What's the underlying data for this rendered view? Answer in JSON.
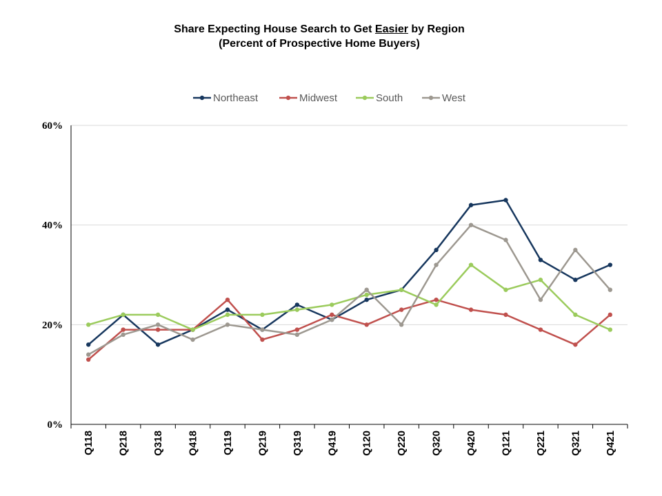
{
  "title": {
    "prefix": "Share Expecting House Search to Get ",
    "emphasis": "Easier",
    "suffix": " by Region",
    "subtitle": "(Percent of Prospective Home Buyers)"
  },
  "chart_data": {
    "type": "line",
    "categories": [
      "Q118",
      "Q218",
      "Q318",
      "Q418",
      "Q119",
      "Q219",
      "Q319",
      "Q419",
      "Q120",
      "Q220",
      "Q320",
      "Q420",
      "Q121",
      "Q221",
      "Q321",
      "Q421"
    ],
    "ylim": [
      0,
      60
    ],
    "yticks": [
      "0%",
      "20%",
      "40%",
      "60%"
    ],
    "grid": true,
    "legend_position": "top-center",
    "series": [
      {
        "name": "Northeast",
        "color": "#17375e",
        "values": [
          16,
          22,
          16,
          19,
          23,
          19,
          24,
          21,
          25,
          27,
          35,
          44,
          45,
          33,
          29,
          32
        ]
      },
      {
        "name": "Midwest",
        "color": "#c0504d",
        "values": [
          13,
          19,
          19,
          19,
          25,
          17,
          19,
          22,
          20,
          23,
          25,
          23,
          22,
          19,
          16,
          22
        ]
      },
      {
        "name": "South",
        "color": "#9bcb5c",
        "values": [
          20,
          22,
          22,
          19,
          22,
          22,
          23,
          24,
          26,
          27,
          24,
          32,
          27,
          29,
          22,
          19
        ]
      },
      {
        "name": "West",
        "color": "#9d9890",
        "values": [
          14,
          18,
          20,
          17,
          20,
          19,
          18,
          21,
          27,
          20,
          32,
          40,
          37,
          25,
          35,
          27
        ]
      }
    ]
  }
}
